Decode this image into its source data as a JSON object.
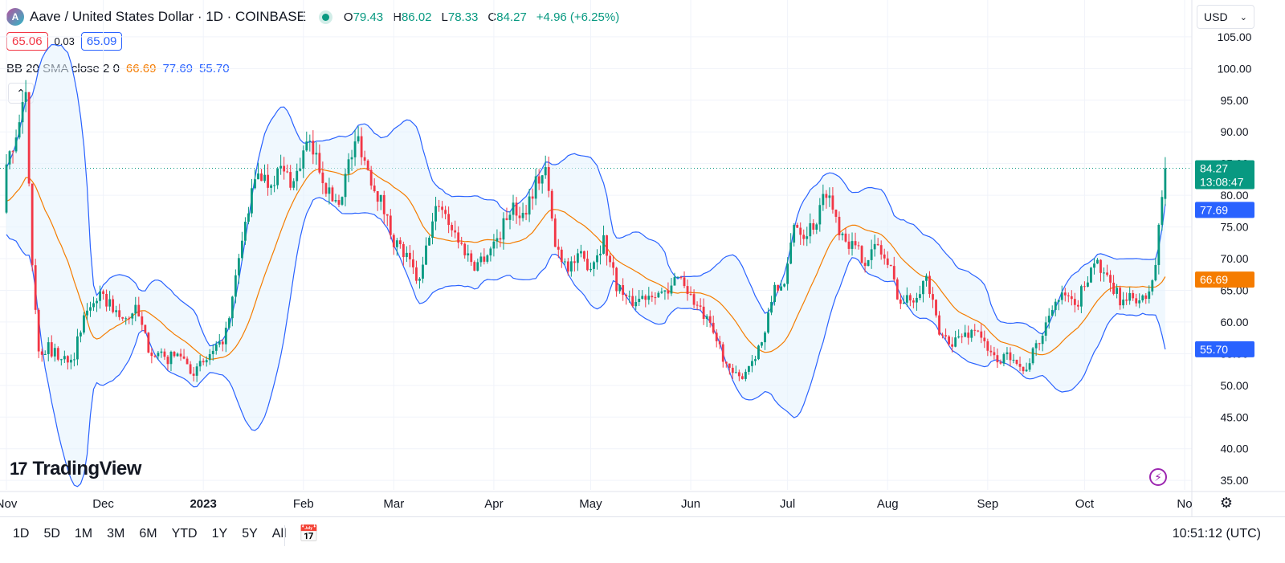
{
  "header": {
    "logo_letter": "A",
    "title": "Aave / United States Dollar · 1D · COINBASE",
    "ohlc": [
      {
        "label": "O",
        "value": "79.43"
      },
      {
        "label": "H",
        "value": "86.02"
      },
      {
        "label": "L",
        "value": "78.33"
      },
      {
        "label": "C",
        "value": "84.27"
      }
    ],
    "change": "+4.96 (+6.25%)",
    "bid": "65.06",
    "spread": "0.03",
    "ask": "65.09"
  },
  "indicator": {
    "label": "BB 20 SMA close 2 0",
    "basis": "66.69",
    "upper": "77.69",
    "lower": "55.70",
    "colors": {
      "basis": "#f57c00",
      "upper": "#2962ff",
      "lower": "#2962ff"
    }
  },
  "currency": {
    "value": "USD"
  },
  "brand": {
    "logo_mark": "17",
    "name": "TradingView"
  },
  "bottom_bar": {
    "ranges": [
      "1D",
      "5D",
      "1M",
      "3M",
      "6M",
      "YTD",
      "1Y",
      "5Y",
      "All"
    ],
    "clock": "10:51:12 (UTC)"
  },
  "icons": {
    "calendar": "calendar-range-icon",
    "flash": "flash-icon",
    "settings": "gear-icon",
    "collapse": "chevron-up-icon"
  },
  "colors": {
    "up": "#089981",
    "down": "#f23645",
    "bb_band": "#2962ff",
    "bb_basis": "#f57c00",
    "band_fill": "#e3f2fd"
  },
  "chart_data": {
    "type": "candlestick",
    "title": "Aave / United States Dollar · 1D · COINBASE",
    "y_ticks": [
      "35.00",
      "40.00",
      "45.00",
      "50.00",
      "55.00",
      "60.00",
      "65.00",
      "70.00",
      "75.00",
      "80.00",
      "85.00",
      "90.00",
      "95.00",
      "100.00",
      "105.00"
    ],
    "ylim": [
      33.5,
      106
    ],
    "x_ticks": [
      {
        "label": "Nov",
        "month": "2022-11"
      },
      {
        "label": "Dec",
        "month": "2022-12"
      },
      {
        "label": "2023",
        "month": "2023-01"
      },
      {
        "label": "Feb",
        "month": "2023-02"
      },
      {
        "label": "Mar",
        "month": "2023-03"
      },
      {
        "label": "Apr",
        "month": "2023-04"
      },
      {
        "label": "May",
        "month": "2023-05"
      },
      {
        "label": "Jun",
        "month": "2023-06"
      },
      {
        "label": "Jul",
        "month": "2023-07"
      },
      {
        "label": "Aug",
        "month": "2023-08"
      },
      {
        "label": "Sep",
        "month": "2023-09"
      },
      {
        "label": "Oct",
        "month": "2023-10"
      },
      {
        "label": "No",
        "month": "2023-11"
      }
    ],
    "close_anchors": [
      [
        "2022-11-01",
        84
      ],
      [
        "2022-11-04",
        90
      ],
      [
        "2022-11-07",
        95
      ],
      [
        "2022-11-09",
        70
      ],
      [
        "2022-11-11",
        55
      ],
      [
        "2022-11-14",
        56
      ],
      [
        "2022-11-18",
        54
      ],
      [
        "2022-11-22",
        55
      ],
      [
        "2022-11-26",
        62
      ],
      [
        "2022-11-29",
        64
      ],
      [
        "2022-12-03",
        63
      ],
      [
        "2022-12-07",
        60
      ],
      [
        "2022-12-11",
        62
      ],
      [
        "2022-12-15",
        56
      ],
      [
        "2022-12-20",
        54
      ],
      [
        "2022-12-25",
        55
      ],
      [
        "2022-12-29",
        52
      ],
      [
        "2023-01-02",
        54
      ],
      [
        "2023-01-06",
        56
      ],
      [
        "2023-01-09",
        60
      ],
      [
        "2023-01-12",
        70
      ],
      [
        "2023-01-15",
        78
      ],
      [
        "2023-01-18",
        84
      ],
      [
        "2023-01-21",
        82
      ],
      [
        "2023-01-25",
        84
      ],
      [
        "2023-01-29",
        82
      ],
      [
        "2023-02-02",
        88
      ],
      [
        "2023-02-05",
        86
      ],
      [
        "2023-02-09",
        80
      ],
      [
        "2023-02-12",
        79
      ],
      [
        "2023-02-15",
        85
      ],
      [
        "2023-02-18",
        89
      ],
      [
        "2023-02-21",
        84
      ],
      [
        "2023-02-25",
        79
      ],
      [
        "2023-03-01",
        73
      ],
      [
        "2023-03-05",
        70
      ],
      [
        "2023-03-09",
        66
      ],
      [
        "2023-03-12",
        74
      ],
      [
        "2023-03-15",
        79
      ],
      [
        "2023-03-18",
        76
      ],
      [
        "2023-03-22",
        72
      ],
      [
        "2023-03-26",
        69
      ],
      [
        "2023-03-30",
        71
      ],
      [
        "2023-04-03",
        74
      ],
      [
        "2023-04-06",
        78
      ],
      [
        "2023-04-10",
        77
      ],
      [
        "2023-04-14",
        82
      ],
      [
        "2023-04-17",
        84
      ],
      [
        "2023-04-20",
        72
      ],
      [
        "2023-04-24",
        69
      ],
      [
        "2023-04-28",
        70
      ],
      [
        "2023-05-01",
        69
      ],
      [
        "2023-05-05",
        73
      ],
      [
        "2023-05-09",
        66
      ],
      [
        "2023-05-13",
        63
      ],
      [
        "2023-05-17",
        64
      ],
      [
        "2023-05-21",
        65
      ],
      [
        "2023-05-25",
        64
      ],
      [
        "2023-05-28",
        68
      ],
      [
        "2023-06-01",
        64
      ],
      [
        "2023-06-06",
        60
      ],
      [
        "2023-06-10",
        56
      ],
      [
        "2023-06-13",
        52
      ],
      [
        "2023-06-16",
        51
      ],
      [
        "2023-06-20",
        54
      ],
      [
        "2023-06-24",
        58
      ],
      [
        "2023-06-27",
        66
      ],
      [
        "2023-06-30",
        65
      ],
      [
        "2023-07-03",
        76
      ],
      [
        "2023-07-06",
        74
      ],
      [
        "2023-07-10",
        76
      ],
      [
        "2023-07-13",
        81
      ],
      [
        "2023-07-17",
        75
      ],
      [
        "2023-07-21",
        72
      ],
      [
        "2023-07-25",
        70
      ],
      [
        "2023-07-29",
        72
      ],
      [
        "2023-08-02",
        68
      ],
      [
        "2023-08-05",
        63
      ],
      [
        "2023-08-09",
        64
      ],
      [
        "2023-08-13",
        67
      ],
      [
        "2023-08-17",
        58
      ],
      [
        "2023-08-21",
        57
      ],
      [
        "2023-08-25",
        58
      ],
      [
        "2023-08-29",
        59
      ],
      [
        "2023-09-01",
        55
      ],
      [
        "2023-09-05",
        54
      ],
      [
        "2023-09-09",
        55
      ],
      [
        "2023-09-12",
        52
      ],
      [
        "2023-09-15",
        55
      ],
      [
        "2023-09-18",
        58
      ],
      [
        "2023-09-21",
        63
      ],
      [
        "2023-09-25",
        64
      ],
      [
        "2023-09-28",
        62
      ],
      [
        "2023-10-01",
        66
      ],
      [
        "2023-10-04",
        70
      ],
      [
        "2023-10-07",
        67
      ],
      [
        "2023-10-10",
        65
      ],
      [
        "2023-10-13",
        63
      ],
      [
        "2023-10-17",
        64
      ],
      [
        "2023-10-20",
        63
      ],
      [
        "2023-10-23",
        69
      ],
      [
        "2023-10-25",
        80
      ],
      [
        "2023-10-26",
        84.27
      ]
    ],
    "last_bar": {
      "open": 79.43,
      "high": 86.02,
      "low": 78.33,
      "close": 84.27
    },
    "last_price_label": "84.27",
    "countdown": "13:08:47",
    "bb_labels": {
      "basis": "66.69",
      "upper": "77.69",
      "lower": "55.70"
    },
    "bb_period": 20,
    "bb_mult": 2
  }
}
